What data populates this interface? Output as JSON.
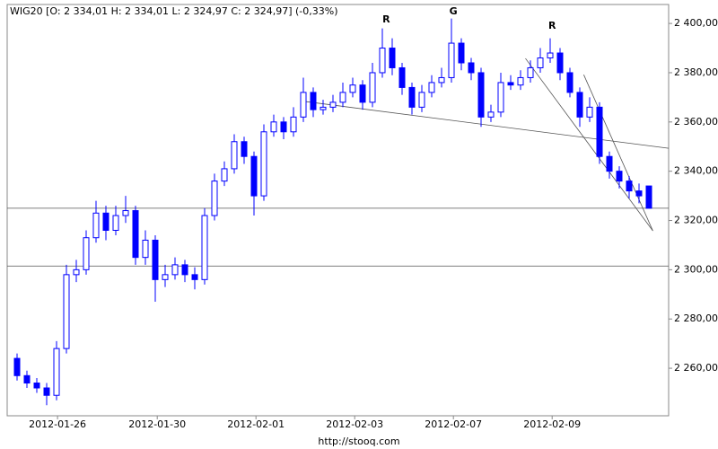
{
  "chart_data": {
    "type": "candlestick",
    "title": "WIG20 [O: 2 334,01  H: 2 334,01  L: 2 324,97  C: 2 324,97] (-0,33%)",
    "source": "http://stooq.com",
    "color": "#0000ff",
    "xlim": [
      -1,
      66
    ],
    "ylim": [
      2240.7,
      2407.7
    ],
    "xticks": [
      {
        "value": 4.1,
        "label": "2012-01-26"
      },
      {
        "value": 14.2,
        "label": "2012-01-30"
      },
      {
        "value": 24.2,
        "label": "2012-02-01"
      },
      {
        "value": 34.2,
        "label": "2012-02-03"
      },
      {
        "value": 44.2,
        "label": "2012-02-07"
      },
      {
        "value": 54.2,
        "label": "2012-02-09"
      }
    ],
    "yticks": [
      {
        "value": 2260,
        "label": "2 260,00"
      },
      {
        "value": 2280,
        "label": "2 280,00"
      },
      {
        "value": 2300,
        "label": "2 300,00"
      },
      {
        "value": 2320,
        "label": "2 320,00"
      },
      {
        "value": 2340,
        "label": "2 340,00"
      },
      {
        "value": 2360,
        "label": "2 360,00"
      },
      {
        "value": 2380,
        "label": "2 380,00"
      },
      {
        "value": 2400,
        "label": "2 400,00"
      }
    ],
    "series": [
      {
        "open": [
          2264,
          2257,
          2254,
          2252,
          2249,
          2268,
          2298,
          2300,
          2313,
          2323,
          2316,
          2322,
          2324,
          2305,
          2312,
          2296,
          2298,
          2302,
          2298,
          2296,
          2322,
          2336,
          2341,
          2352,
          2346,
          2330,
          2356,
          2360,
          2356,
          2362,
          2372,
          2365,
          2366,
          2368,
          2372,
          2375,
          2368,
          2380,
          2390,
          2382,
          2374,
          2366,
          2372,
          2376,
          2378,
          2392,
          2384,
          2380,
          2362,
          2364,
          2376,
          2375,
          2378,
          2382,
          2386,
          2388,
          2380,
          2372,
          2362,
          2366,
          2346,
          2340,
          2336,
          2332,
          2334.01
        ],
        "high": [
          2266,
          2259,
          2256,
          2254,
          2271,
          2302,
          2304,
          2316,
          2328,
          2326,
          2326,
          2330,
          2326,
          2316,
          2314,
          2302,
          2305,
          2304,
          2301,
          2325,
          2339,
          2344,
          2355,
          2354,
          2348,
          2359,
          2363,
          2362,
          2366,
          2378,
          2374,
          2369,
          2371,
          2376,
          2378,
          2377,
          2384,
          2398,
          2394,
          2384,
          2376,
          2375,
          2379,
          2382,
          2402,
          2394,
          2386,
          2382,
          2367,
          2380,
          2379,
          2381,
          2385,
          2390,
          2394,
          2390,
          2382,
          2374,
          2370,
          2368,
          2348,
          2342,
          2338,
          2335,
          2334.01
        ],
        "low": [
          2255,
          2252,
          2250,
          2245,
          2247,
          2266,
          2295,
          2298,
          2311,
          2312,
          2314,
          2319,
          2302,
          2302,
          2287,
          2293,
          2296,
          2295,
          2292,
          2294,
          2320,
          2334,
          2339,
          2343,
          2322,
          2328,
          2354,
          2353,
          2354,
          2360,
          2362,
          2363,
          2364,
          2366,
          2370,
          2365,
          2366,
          2378,
          2379,
          2371,
          2363,
          2364,
          2370,
          2374,
          2376,
          2381,
          2377,
          2358,
          2360,
          2362,
          2373,
          2373,
          2376,
          2380,
          2384,
          2377,
          2370,
          2358,
          2360,
          2343,
          2337,
          2333,
          2329,
          2327,
          2324.97
        ],
        "close": [
          2257,
          2254,
          2252,
          2249,
          2268,
          2298,
          2300,
          2313,
          2323,
          2316,
          2322,
          2324,
          2305,
          2312,
          2296,
          2298,
          2302,
          2298,
          2296,
          2322,
          2336,
          2341,
          2352,
          2346,
          2330,
          2356,
          2360,
          2356,
          2362,
          2372,
          2365,
          2366,
          2368,
          2372,
          2375,
          2368,
          2380,
          2390,
          2382,
          2374,
          2366,
          2372,
          2376,
          2378,
          2392,
          2384,
          2380,
          2362,
          2364,
          2376,
          2375,
          2378,
          2382,
          2386,
          2388,
          2380,
          2372,
          2362,
          2366,
          2346,
          2340,
          2336,
          2332,
          2330,
          2324.97
        ]
      }
    ],
    "hlines": [
      2324.97,
      2301.5
    ],
    "trendlines": [
      {
        "x": [
          29.2,
          66
        ],
        "y": [
          2368.3,
          2349.3
        ]
      },
      {
        "x": [
          51.5,
          64.4
        ],
        "y": [
          2385.8,
          2315.8
        ]
      },
      {
        "x": [
          57.4,
          64.4
        ],
        "y": [
          2379.2,
          2315.8
        ]
      }
    ],
    "annotations": [
      {
        "text": "R",
        "x": 37.4,
        "y": 2401.5
      },
      {
        "text": "G",
        "x": 44.2,
        "y": 2404.7
      },
      {
        "text": "R",
        "x": 54.2,
        "y": 2398.9
      }
    ]
  }
}
